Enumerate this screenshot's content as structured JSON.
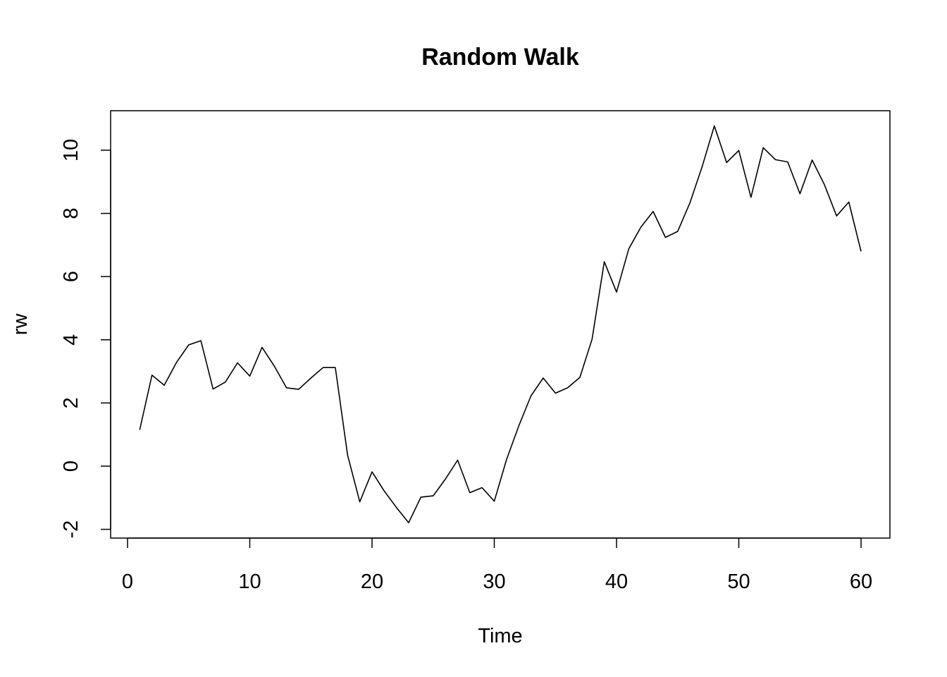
{
  "chart_data": {
    "type": "line",
    "title": "Random Walk",
    "xlabel": "Time",
    "ylabel": "rw",
    "xlim": [
      0,
      60
    ],
    "ylim": [
      -2,
      11
    ],
    "x_ticks": [
      0,
      10,
      20,
      30,
      40,
      50,
      60
    ],
    "y_ticks": [
      -2,
      0,
      2,
      4,
      6,
      8,
      10
    ],
    "grid": false,
    "legend": "none",
    "line_color": "#000000",
    "x": [
      1,
      2,
      3,
      4,
      5,
      6,
      7,
      8,
      9,
      10,
      11,
      12,
      13,
      14,
      15,
      16,
      17,
      18,
      19,
      20,
      21,
      22,
      23,
      24,
      25,
      26,
      27,
      28,
      29,
      30,
      31,
      32,
      33,
      34,
      35,
      36,
      37,
      38,
      39,
      40,
      41,
      42,
      43,
      44,
      45,
      46,
      47,
      48,
      49,
      50,
      51,
      52,
      53,
      54,
      55,
      56,
      57,
      58,
      59,
      60
    ],
    "values": [
      1.15,
      2.88,
      2.56,
      3.28,
      3.84,
      3.97,
      2.44,
      2.66,
      3.27,
      2.85,
      3.76,
      3.17,
      2.48,
      2.43,
      2.79,
      3.12,
      3.12,
      0.35,
      -1.13,
      -0.18,
      -0.79,
      -1.31,
      -1.79,
      -0.98,
      -0.94,
      -0.41,
      0.19,
      -0.84,
      -0.68,
      -1.11,
      0.21,
      1.27,
      2.22,
      2.79,
      2.31,
      2.48,
      2.81,
      4.02,
      6.47,
      5.51,
      6.88,
      7.57,
      8.06,
      7.24,
      7.43,
      8.33,
      9.48,
      10.77,
      9.61,
      9.99,
      8.51,
      10.08,
      9.7,
      9.63,
      8.62,
      9.69,
      8.91,
      7.92,
      8.36,
      6.8
    ]
  }
}
